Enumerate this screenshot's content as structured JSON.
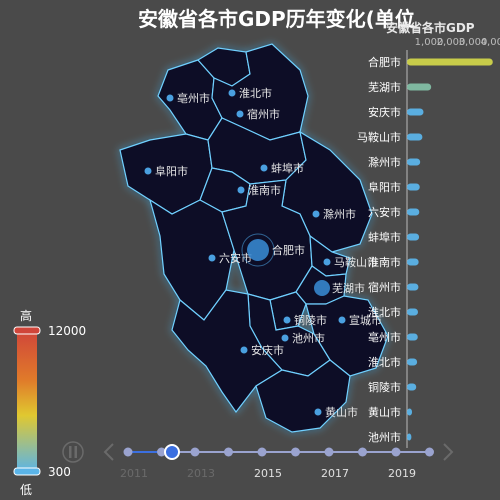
{
  "title": "安徽省各市GDP历年变化(单位",
  "rank_title": "安徽省各市GDP",
  "colors": {
    "background": "#4a4a4a",
    "map_fill": "#0d0b26",
    "map_glow": "#5ec8ff",
    "city_dot": "#4aa0e0",
    "top_bar": "#c8cc4a",
    "second_bar": "#7fb8a0",
    "bar": "#5aaee0",
    "timeline": "#9aa3cf",
    "timeline_active": "#3b6fe0"
  },
  "visual_map": {
    "high_label": "高",
    "low_label": "低",
    "max": 12000,
    "min": 300,
    "max_text": "12000",
    "min_text": "300"
  },
  "chart_data": {
    "type": "bar",
    "title": "安徽省各市GDP历年变化(单位",
    "subtitle": "安徽省各市GDP",
    "x_axis_ticks": [
      "1,000",
      "2,000",
      "3,000",
      "4,000"
    ],
    "xlim": [
      0,
      4000
    ],
    "categories": [
      "合肥市",
      "芜湖市",
      "安庆市",
      "马鞍山市",
      "滁州市",
      "阜阳市",
      "六安市",
      "蚌埠市",
      "淮南市",
      "宿州市",
      "淮北市",
      "亳州市",
      "淮北市",
      "铜陵市",
      "黄山市",
      "池州市"
    ],
    "values": [
      3900,
      1100,
      750,
      700,
      600,
      580,
      560,
      550,
      530,
      520,
      500,
      490,
      460,
      420,
      230,
      200
    ],
    "grid": false,
    "legend": "none"
  },
  "map": {
    "city_labels": [
      "亳州市",
      "淮北市",
      "宿州市",
      "阜阳市",
      "蚌埠市",
      "淮南市",
      "滁州市",
      "六安市",
      "合肥市",
      "马鞍山市",
      "芜湖市",
      "铜陵市",
      "宣城市",
      "池州市",
      "安庆市",
      "黄山市"
    ]
  },
  "timeline": {
    "years": [
      "2011",
      "2013",
      "2015",
      "2017",
      "2019"
    ],
    "current_year": "2012",
    "play_icon": "pause-icon",
    "prev_icon": "chevron-left-icon",
    "next_icon": "chevron-right-icon"
  }
}
